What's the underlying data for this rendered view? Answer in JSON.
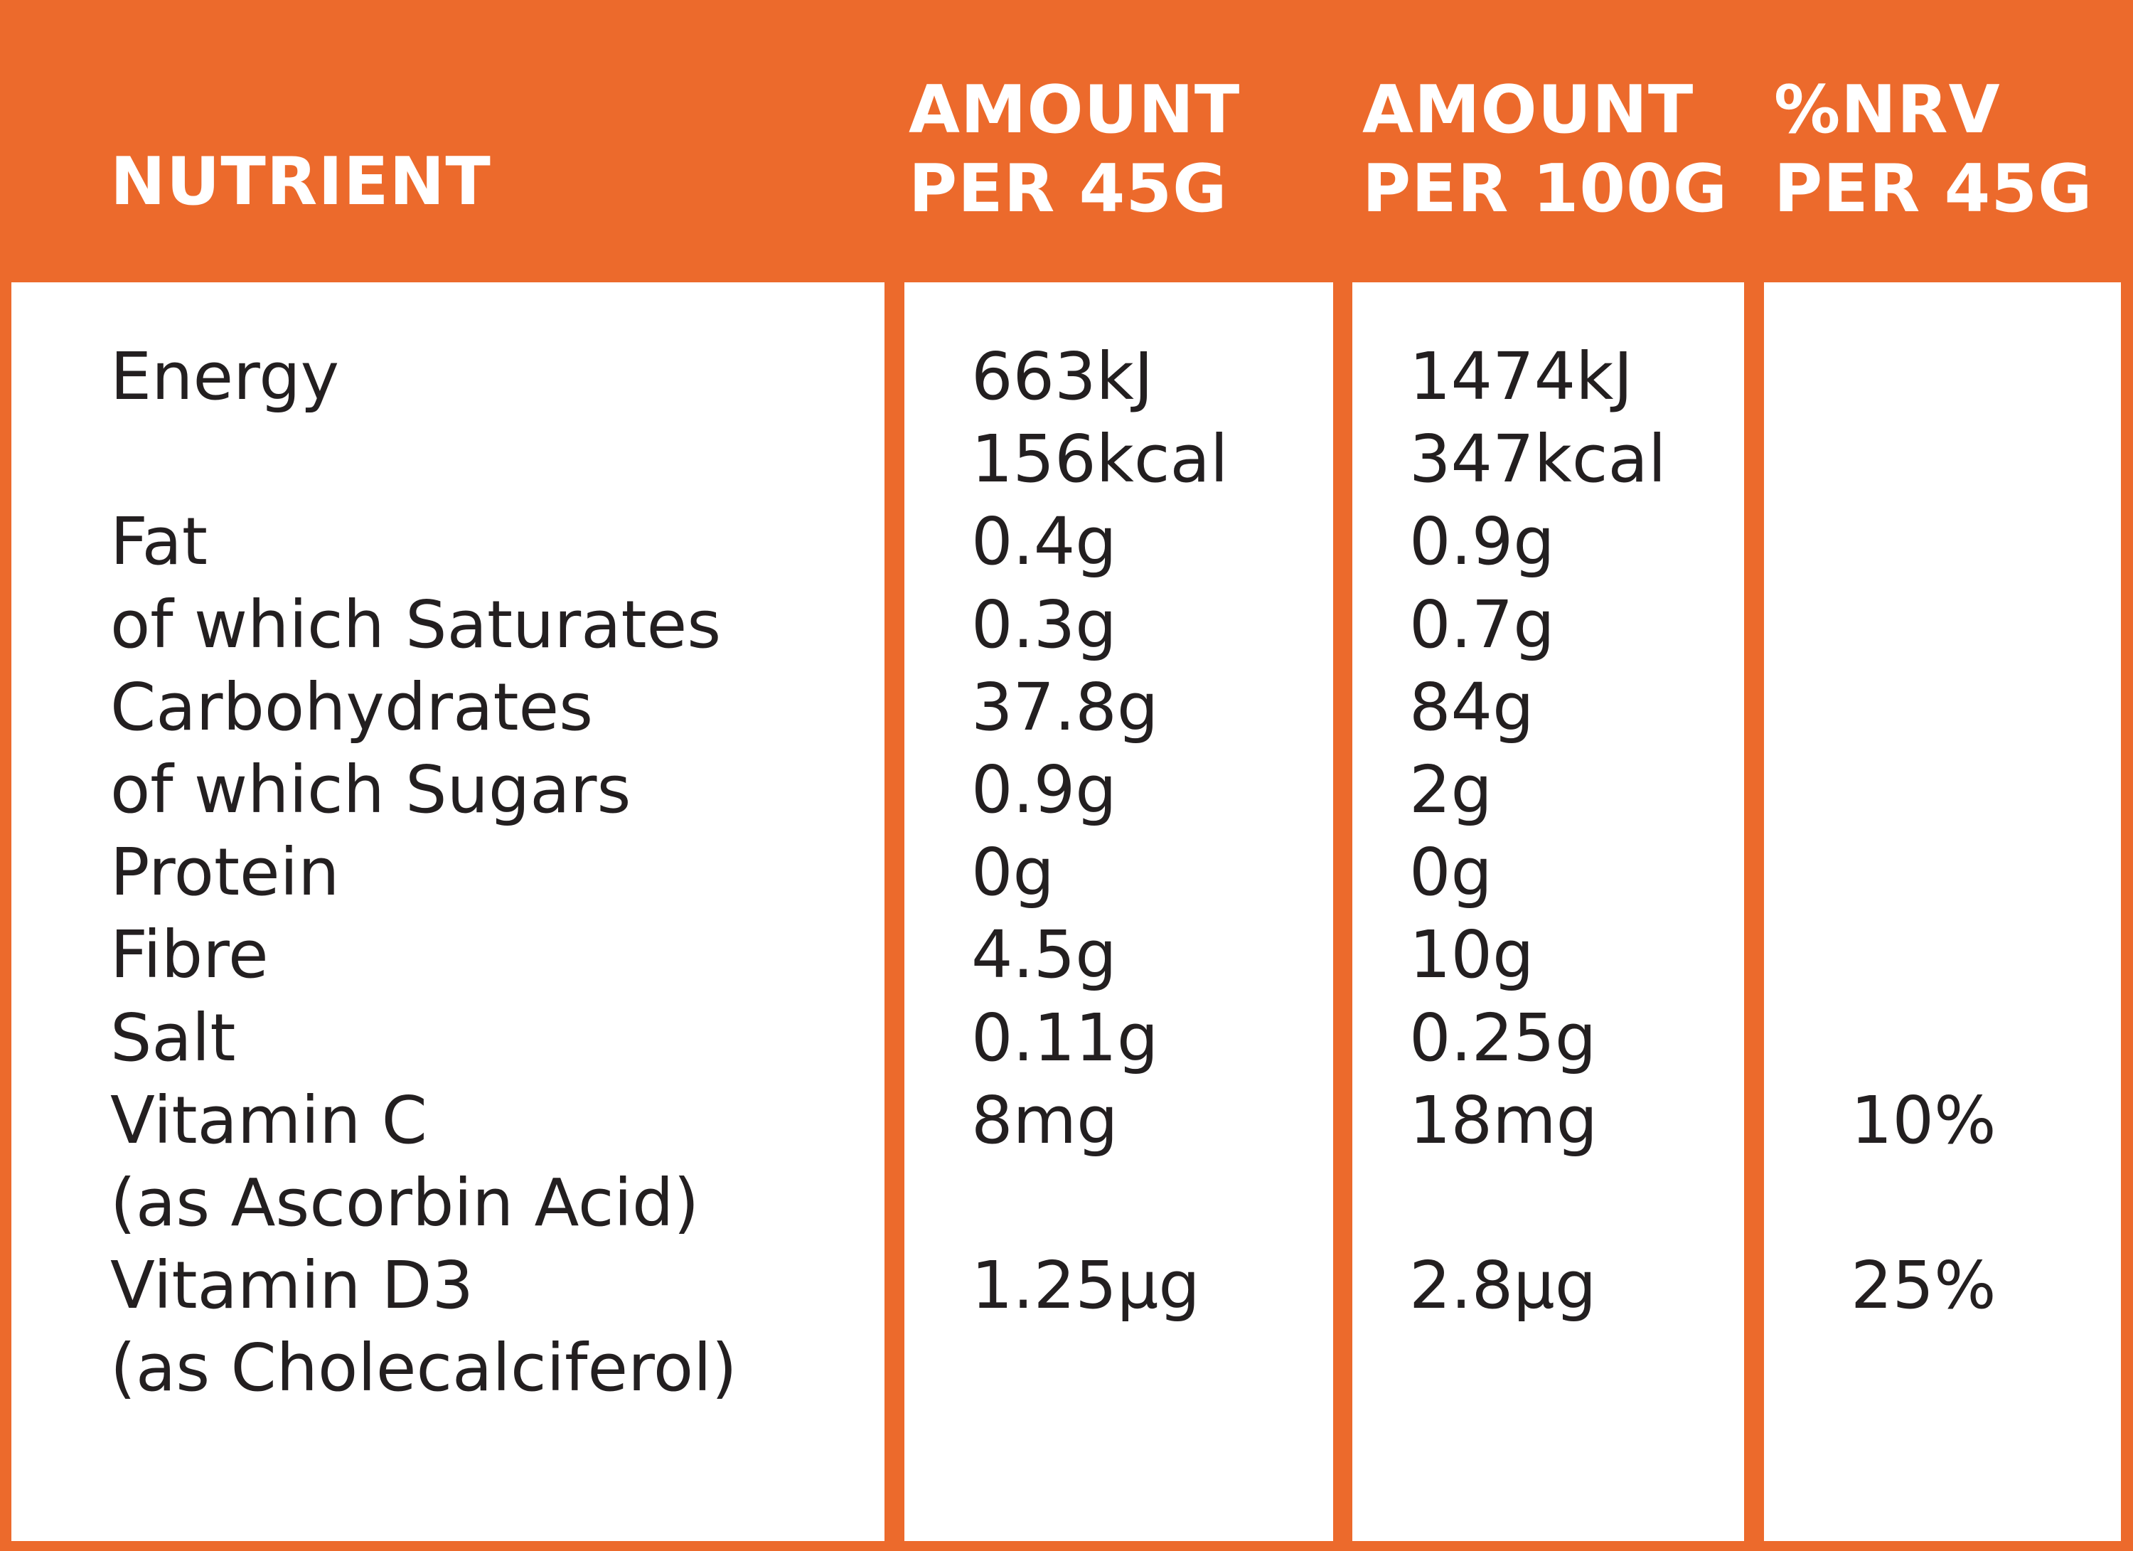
{
  "header": {
    "nutrient": "NUTRIENT",
    "per45_line1": "AMOUNT",
    "per45_line2": "PER 45G",
    "per100_line1": "AMOUNT",
    "per100_line2": "PER 100G",
    "nrv_line1": "%NRV",
    "nrv_line2": "PER 45G"
  },
  "rows": [
    {
      "nutrient": "Energy",
      "per45": "663kJ",
      "per100": "1474kJ",
      "nrv": ""
    },
    {
      "nutrient": "",
      "per45": "156kcal",
      "per100": "347kcal",
      "nrv": ""
    },
    {
      "nutrient": "Fat",
      "per45": "0.4g",
      "per100": "0.9g",
      "nrv": ""
    },
    {
      "nutrient": "of which Saturates",
      "per45": "0.3g",
      "per100": "0.7g",
      "nrv": ""
    },
    {
      "nutrient": "Carbohydrates",
      "per45": "37.8g",
      "per100": "84g",
      "nrv": ""
    },
    {
      "nutrient": "of which Sugars",
      "per45": "0.9g",
      "per100": "2g",
      "nrv": ""
    },
    {
      "nutrient": "Protein",
      "per45": "0g",
      "per100": "0g",
      "nrv": ""
    },
    {
      "nutrient": "Fibre",
      "per45": "4.5g",
      "per100": "10g",
      "nrv": ""
    },
    {
      "nutrient": "Salt",
      "per45": "0.11g",
      "per100": "0.25g",
      "nrv": ""
    },
    {
      "nutrient": "Vitamin C",
      "per45": "8mg",
      "per100": "18mg",
      "nrv": "10%"
    },
    {
      "nutrient": "(as Ascorbin Acid)",
      "per45": "",
      "per100": "",
      "nrv": ""
    },
    {
      "nutrient": "Vitamin D3",
      "per45": "1.25µg",
      "per100": "2.8µg",
      "nrv": "25%"
    },
    {
      "nutrient": "(as Cholecalciferol)",
      "per45": "",
      "per100": "",
      "nrv": ""
    }
  ],
  "colors": {
    "border": "#ec6a2c",
    "header_text": "#ffffff",
    "body_text": "#231f20",
    "cell_background": "#ffffff"
  }
}
